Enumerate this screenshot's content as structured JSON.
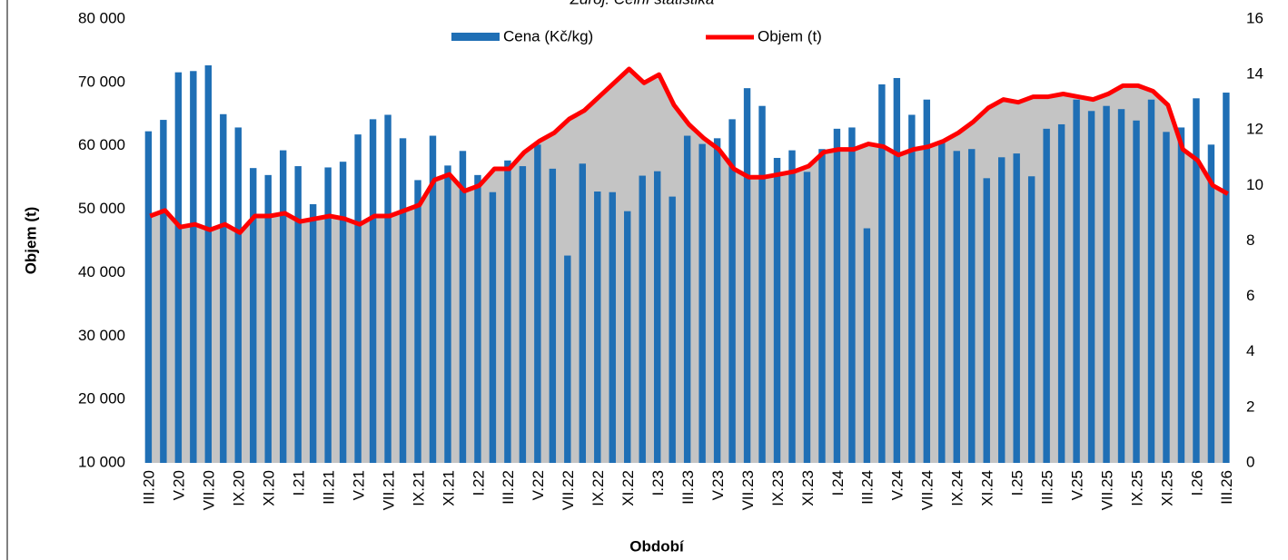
{
  "chart_data": {
    "type": "bar_line",
    "source": "Zdroj: Celní statistika",
    "y_label": "Objem (t)",
    "x_label": "Období",
    "categories": [
      "III.20",
      null,
      "V.20",
      null,
      "VII.20",
      null,
      "IX.20",
      null,
      "XI.20",
      null,
      "I.21",
      null,
      "III.21",
      null,
      "V.21",
      null,
      "VII.21",
      null,
      "IX.21",
      null,
      "XI.21",
      null,
      "I.22",
      null,
      "III.22",
      null,
      "V.22",
      null,
      "VII.22",
      null,
      "IX.22",
      null,
      "XI.22",
      null,
      "I.23",
      null,
      "III.23",
      null,
      "V.23",
      null,
      "VII.23",
      null,
      "IX.23",
      null,
      "XI.23",
      null,
      "I.24",
      null,
      "III.24",
      null,
      "V.24",
      null,
      "VII.24",
      null,
      "IX.24",
      null,
      "XI.24",
      null,
      "I.25",
      null,
      "III.25",
      null,
      "V.25",
      null,
      "VII.25",
      null,
      "IX.25",
      null,
      "XI.25",
      null,
      "I.26",
      null,
      "III.26"
    ],
    "series": [
      {
        "name": "Cena (Kč/kg)",
        "type": "bar",
        "color": "#1f6fb5",
        "values": [
          62300,
          64100,
          71600,
          71800,
          72700,
          65000,
          62900,
          56500,
          55400,
          59300,
          56800,
          50800,
          56600,
          57500,
          61800,
          64200,
          64900,
          61200,
          54600,
          61600,
          56900,
          59200,
          55400,
          52700,
          57700,
          56800,
          60200,
          56400,
          42700,
          57200,
          52800,
          52700,
          49700,
          55300,
          56000,
          52000,
          61600,
          60300,
          61200,
          64200,
          69100,
          66300,
          58100,
          59300,
          55900,
          59500,
          62700,
          62900,
          47000,
          69700,
          70700,
          64900,
          67300,
          60700,
          59200,
          59500,
          54900,
          58200,
          58800,
          55200,
          62700,
          63400,
          67300,
          65500,
          66300,
          65800,
          64000,
          67300,
          62200,
          62900,
          67500,
          60200,
          68400
        ]
      },
      {
        "name": "Objem (t)",
        "type": "line",
        "axis": "y2",
        "color": "#ff0000",
        "area_color": "#c4c4c4",
        "values": [
          8.9,
          9.1,
          8.5,
          8.6,
          8.4,
          8.6,
          8.3,
          8.9,
          8.9,
          9.0,
          8.7,
          8.8,
          8.9,
          8.8,
          8.6,
          8.9,
          8.9,
          9.1,
          9.3,
          10.2,
          10.4,
          9.8,
          10.0,
          10.6,
          10.6,
          11.2,
          11.6,
          11.9,
          12.4,
          12.7,
          13.2,
          13.7,
          14.2,
          13.7,
          14.0,
          12.9,
          12.2,
          11.7,
          11.3,
          10.6,
          10.3,
          10.3,
          10.4,
          10.5,
          10.7,
          11.2,
          11.3,
          11.3,
          11.5,
          11.4,
          11.1,
          11.3,
          11.4,
          11.6,
          11.9,
          12.3,
          12.8,
          13.1,
          13.0,
          13.2,
          13.2,
          13.3,
          13.2,
          13.1,
          13.3,
          13.6,
          13.6,
          13.4,
          12.9,
          11.3,
          10.9,
          10.0,
          9.7
        ]
      }
    ],
    "ylim": [
      10000,
      80000
    ],
    "yticks": [
      {
        "value": 10000,
        "label": "10 000"
      },
      {
        "value": 20000,
        "label": "20 000"
      },
      {
        "value": 30000,
        "label": "30 000"
      },
      {
        "value": 40000,
        "label": "40 000"
      },
      {
        "value": 50000,
        "label": "50 000"
      },
      {
        "value": 60000,
        "label": "60 000"
      },
      {
        "value": 70000,
        "label": "70 000"
      },
      {
        "value": 80000,
        "label": "80 000"
      }
    ],
    "y2lim": [
      0,
      16
    ],
    "y2ticks": [
      0,
      2,
      4,
      6,
      8,
      10,
      12,
      14,
      16
    ],
    "legend": "top"
  }
}
